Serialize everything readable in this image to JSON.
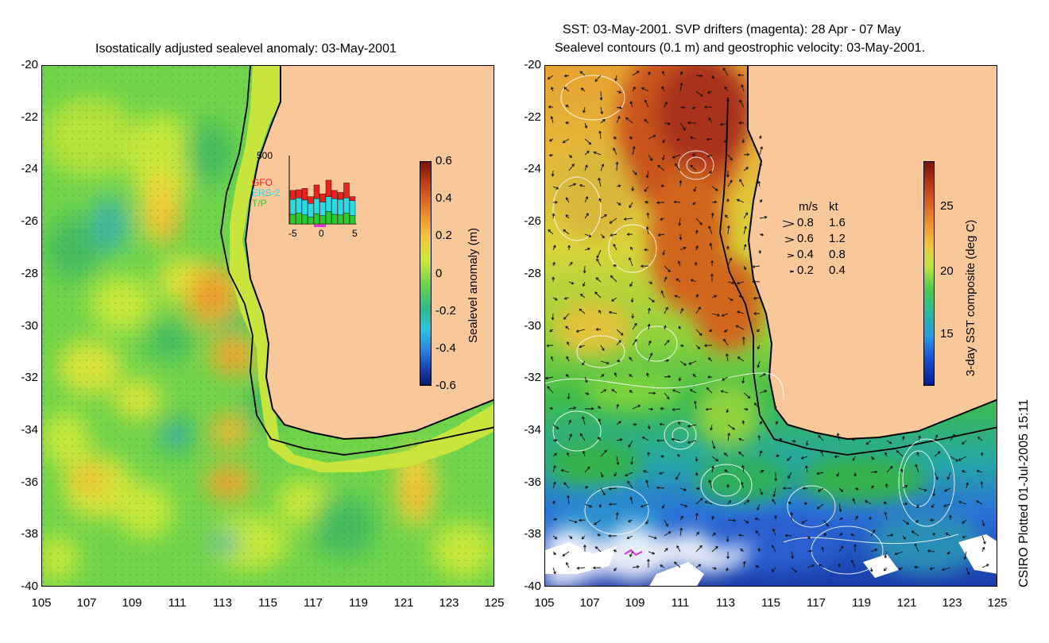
{
  "left_panel": {
    "title": "Isostatically adjusted sealevel anomaly: 03-May-2001",
    "y_ticks": [
      "-20",
      "-22",
      "-24",
      "-26",
      "-28",
      "-30",
      "-32",
      "-34",
      "-36",
      "-38",
      "-40"
    ],
    "x_ticks": [
      "105",
      "107",
      "109",
      "111",
      "113",
      "115",
      "117",
      "119",
      "121",
      "123",
      "125"
    ],
    "colorbar": {
      "label": "Sealevel anomaly (m)",
      "ticks": [
        "0.6",
        "0.4",
        "0.2",
        "0",
        "-0.2",
        "-0.4",
        "-0.6"
      ]
    },
    "inset": {
      "y_max": "500",
      "legend": [
        {
          "name": "GFO",
          "color": "#e8221c"
        },
        {
          "name": "ERS-2",
          "color": "#2fd9e3"
        },
        {
          "name": "T/P",
          "color": "#2dc92d"
        }
      ],
      "x_ticks": [
        "-5",
        "0",
        "5"
      ],
      "bars": [
        {
          "tp": 0.14,
          "ers": 0.22,
          "gfo": 0.13
        },
        {
          "tp": 0.16,
          "ers": 0.22,
          "gfo": 0.12
        },
        {
          "tp": 0.13,
          "ers": 0.22,
          "gfo": 0.17
        },
        {
          "tp": 0.1,
          "ers": 0.2,
          "gfo": 0.1
        },
        {
          "tp": 0.15,
          "ers": 0.22,
          "gfo": 0.2
        },
        {
          "tp": 0.12,
          "ers": 0.2,
          "gfo": 0.12
        },
        {
          "tp": 0.18,
          "ers": 0.22,
          "gfo": 0.24
        },
        {
          "tp": 0.14,
          "ers": 0.23,
          "gfo": 0.12
        },
        {
          "tp": 0.13,
          "ers": 0.23,
          "gfo": 0.1
        },
        {
          "tp": 0.16,
          "ers": 0.22,
          "gfo": 0.22
        },
        {
          "tp": 0.12,
          "ers": 0.22,
          "gfo": 0.06
        }
      ]
    }
  },
  "right_panel": {
    "title_line1": "SST: 03-May-2001. SVP drifters (magenta): 28 Apr - 07 May",
    "title_line2": "Sealevel contours (0.1 m) and geostrophic velocity: 03-May-2001.",
    "y_ticks": [
      "-20",
      "-22",
      "-24",
      "-26",
      "-28",
      "-30",
      "-32",
      "-34",
      "-36",
      "-38",
      "-40"
    ],
    "x_ticks": [
      "105",
      "107",
      "109",
      "111",
      "113",
      "115",
      "117",
      "119",
      "121",
      "123",
      "125"
    ],
    "colorbar": {
      "label": "3-day SST composite (deg C)",
      "ticks": [
        "25",
        "20",
        "15"
      ]
    },
    "velocity_legend": {
      "header_ms": "m/s",
      "header_kt": "kt",
      "rows": [
        {
          "ms": "0.8",
          "kt": "1.6"
        },
        {
          "ms": "0.6",
          "kt": "1.2"
        },
        {
          "ms": "0.4",
          "kt": "0.8"
        },
        {
          "ms": "0.2",
          "kt": "0.4"
        }
      ]
    }
  },
  "footer": {
    "credit": "CSIRO Plotted 01-Jul-2005 15:11"
  },
  "colors": {
    "land": "#f8c89a",
    "coastline": "#000000"
  }
}
